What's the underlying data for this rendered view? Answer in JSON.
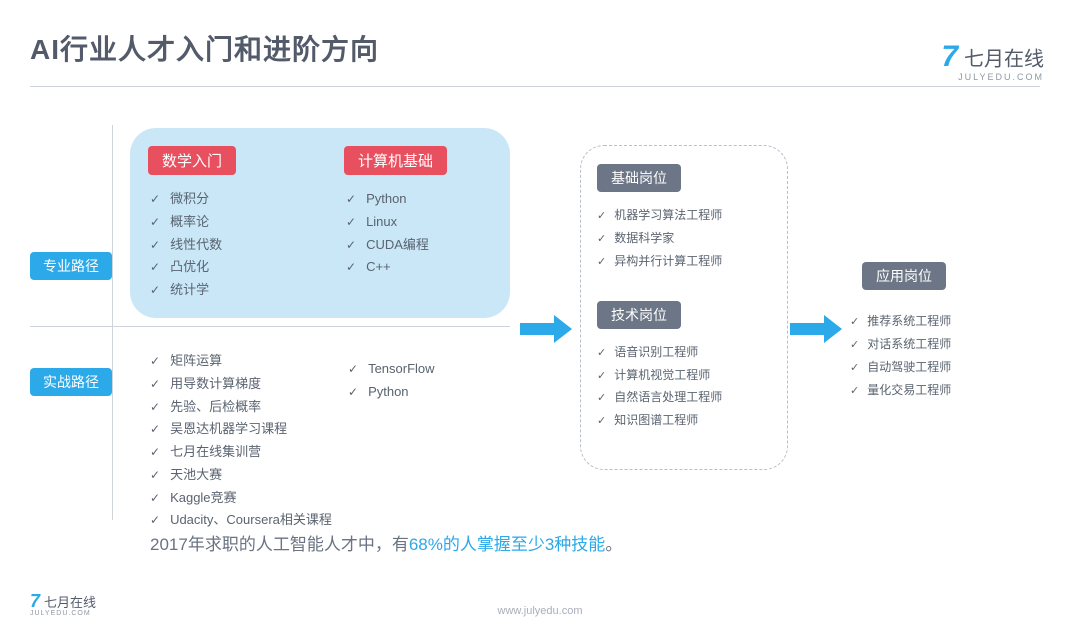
{
  "colors": {
    "accent_blue": "#2ba9e8",
    "tag_red": "#e84f5f",
    "tag_gray": "#6d7686",
    "bluebox_bg": "#c9e7f7",
    "text_main": "#5a6370",
    "title_color": "#535b6b",
    "divider": "#cfd4db",
    "dash_border": "#b7bfca"
  },
  "title": "AI行业人才入门和进阶方向",
  "logo": {
    "cn": "七月在线",
    "en": "JULYEDU.COM"
  },
  "side_labels": {
    "professional": "专业路径",
    "practical": "实战路径"
  },
  "professional_box": {
    "math_tag": "数学入门",
    "cs_tag": "计算机基础",
    "math_items": [
      "微积分",
      "概率论",
      "线性代数",
      "凸优化",
      "统计学"
    ],
    "cs_items": [
      "Python",
      "Linux",
      "CUDA编程",
      "C++"
    ]
  },
  "practical": {
    "col1": [
      "矩阵运算",
      "用导数计算梯度",
      "先验、后检概率",
      "吴恩达机器学习课程",
      "七月在线集训营",
      "天池大赛",
      "Kaggle竞赛",
      "Udacity、Coursera相关课程"
    ],
    "col2": [
      "TensorFlow",
      "Python"
    ]
  },
  "jobs": {
    "basic_tag": "基础岗位",
    "basic_items": [
      "机器学习算法工程师",
      "数据科学家",
      "异构并行计算工程师"
    ],
    "tech_tag": "技术岗位",
    "tech_items": [
      "语音识别工程师",
      "计算机视觉工程师",
      "自然语言处理工程师",
      "知识图谱工程师"
    ],
    "app_tag": "应用岗位",
    "app_items": [
      "推荐系统工程师",
      "对话系统工程师",
      "自动驾驶工程师",
      "量化交易工程师"
    ]
  },
  "statement": {
    "pre": "2017年求职的人工智能人才中，有",
    "highlight": "68%的人掌握至少3种技能",
    "post": "。"
  },
  "footer_url": "www.julyedu.com"
}
